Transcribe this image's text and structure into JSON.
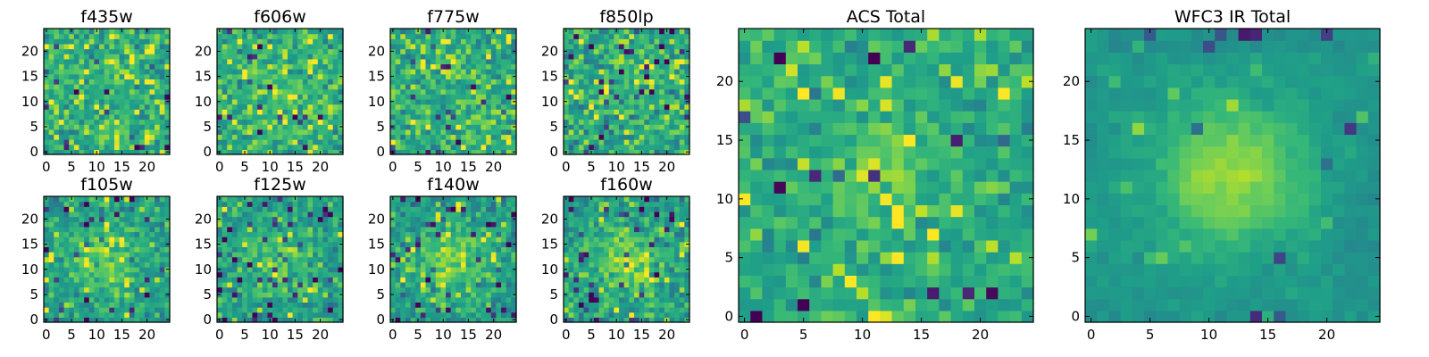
{
  "figure": {
    "colormap": "viridis",
    "colormap_stops": [
      "#440154",
      "#482777",
      "#3e4a89",
      "#31688e",
      "#26828e",
      "#1f9e89",
      "#35b779",
      "#6ece58",
      "#b5de2b",
      "#fde725"
    ]
  },
  "chart_data": [
    {
      "type": "heatmap",
      "title": "f435w",
      "x": {
        "ticks": [
          0,
          5,
          10,
          15,
          20
        ],
        "range": [
          -0.5,
          24.5
        ]
      },
      "y": {
        "ticks": [
          0,
          5,
          10,
          15,
          20
        ],
        "range": [
          -0.5,
          24.5
        ]
      },
      "grid_size": [
        25,
        25
      ],
      "value_range": [
        0,
        1
      ],
      "profile": {
        "background": 0.58,
        "center": [
          12,
          12
        ],
        "peak": 0.07,
        "sigma": 8,
        "noise": 0.2,
        "low_fraction": 0.03,
        "high_fraction": 0.12,
        "seed": 11
      }
    },
    {
      "type": "heatmap",
      "title": "f606w",
      "x": {
        "ticks": [
          0,
          5,
          10,
          15,
          20
        ],
        "range": [
          -0.5,
          24.5
        ]
      },
      "y": {
        "ticks": [
          0,
          5,
          10,
          15,
          20
        ],
        "range": [
          -0.5,
          24.5
        ]
      },
      "grid_size": [
        25,
        25
      ],
      "value_range": [
        0,
        1
      ],
      "profile": {
        "background": 0.6,
        "center": [
          12,
          12
        ],
        "peak": 0.08,
        "sigma": 8,
        "noise": 0.2,
        "low_fraction": 0.03,
        "high_fraction": 0.12,
        "seed": 23
      }
    },
    {
      "type": "heatmap",
      "title": "f775w",
      "x": {
        "ticks": [
          0,
          5,
          10,
          15,
          20
        ],
        "range": [
          -0.5,
          24.5
        ]
      },
      "y": {
        "ticks": [
          0,
          5,
          10,
          15,
          20
        ],
        "range": [
          -0.5,
          24.5
        ]
      },
      "grid_size": [
        25,
        25
      ],
      "value_range": [
        0,
        1
      ],
      "profile": {
        "background": 0.59,
        "center": [
          12,
          12
        ],
        "peak": 0.06,
        "sigma": 8,
        "noise": 0.21,
        "low_fraction": 0.04,
        "high_fraction": 0.12,
        "seed": 37
      }
    },
    {
      "type": "heatmap",
      "title": "f850lp",
      "x": {
        "ticks": [
          0,
          5,
          10,
          15,
          20
        ],
        "range": [
          -0.5,
          24.5
        ]
      },
      "y": {
        "ticks": [
          0,
          5,
          10,
          15,
          20
        ],
        "range": [
          -0.5,
          24.5
        ]
      },
      "grid_size": [
        25,
        25
      ],
      "value_range": [
        0,
        1
      ],
      "profile": {
        "background": 0.58,
        "center": [
          12,
          12
        ],
        "peak": 0.05,
        "sigma": 8,
        "noise": 0.22,
        "low_fraction": 0.05,
        "high_fraction": 0.1,
        "seed": 41
      }
    },
    {
      "type": "heatmap",
      "title": "f105w",
      "x": {
        "ticks": [
          0,
          5,
          10,
          15,
          20
        ],
        "range": [
          -0.5,
          24.5
        ]
      },
      "y": {
        "ticks": [
          0,
          5,
          10,
          15,
          20
        ],
        "range": [
          -0.5,
          24.5
        ]
      },
      "grid_size": [
        25,
        25
      ],
      "value_range": [
        0,
        1
      ],
      "profile": {
        "background": 0.56,
        "center": [
          12,
          12
        ],
        "peak": 0.2,
        "sigma": 5,
        "noise": 0.17,
        "low_fraction": 0.04,
        "high_fraction": 0.08,
        "seed": 53
      }
    },
    {
      "type": "heatmap",
      "title": "f125w",
      "x": {
        "ticks": [
          0,
          5,
          10,
          15,
          20
        ],
        "range": [
          -0.5,
          24.5
        ]
      },
      "y": {
        "ticks": [
          0,
          5,
          10,
          15,
          20
        ],
        "range": [
          -0.5,
          24.5
        ]
      },
      "grid_size": [
        25,
        25
      ],
      "value_range": [
        0,
        1
      ],
      "profile": {
        "background": 0.55,
        "center": [
          12,
          12
        ],
        "peak": 0.2,
        "sigma": 5,
        "noise": 0.18,
        "low_fraction": 0.06,
        "high_fraction": 0.08,
        "seed": 67
      }
    },
    {
      "type": "heatmap",
      "title": "f140w",
      "x": {
        "ticks": [
          0,
          5,
          10,
          15,
          20
        ],
        "range": [
          -0.5,
          24.5
        ]
      },
      "y": {
        "ticks": [
          0,
          5,
          10,
          15,
          20
        ],
        "range": [
          -0.5,
          24.5
        ]
      },
      "grid_size": [
        25,
        25
      ],
      "value_range": [
        0,
        1
      ],
      "profile": {
        "background": 0.55,
        "center": [
          12,
          12
        ],
        "peak": 0.23,
        "sigma": 5,
        "noise": 0.17,
        "low_fraction": 0.05,
        "high_fraction": 0.08,
        "seed": 79
      }
    },
    {
      "type": "heatmap",
      "title": "f160w",
      "x": {
        "ticks": [
          0,
          5,
          10,
          15,
          20
        ],
        "range": [
          -0.5,
          24.5
        ]
      },
      "y": {
        "ticks": [
          0,
          5,
          10,
          15,
          20
        ],
        "range": [
          -0.5,
          24.5
        ]
      },
      "grid_size": [
        25,
        25
      ],
      "value_range": [
        0,
        1
      ],
      "profile": {
        "background": 0.54,
        "center": [
          12,
          12
        ],
        "peak": 0.25,
        "sigma": 5,
        "noise": 0.18,
        "low_fraction": 0.06,
        "high_fraction": 0.08,
        "seed": 97
      }
    },
    {
      "type": "heatmap",
      "title": "ACS Total",
      "x": {
        "ticks": [
          0,
          5,
          10,
          15,
          20
        ],
        "range": [
          -0.5,
          24.5
        ]
      },
      "y": {
        "ticks": [
          0,
          5,
          10,
          15,
          20
        ],
        "range": [
          -0.5,
          24.5
        ]
      },
      "grid_size": [
        25,
        25
      ],
      "value_range": [
        0,
        1
      ],
      "profile": {
        "background": 0.6,
        "center": [
          12,
          13
        ],
        "peak": 0.17,
        "sigma": 3.5,
        "noise": 0.16,
        "low_fraction": 0.04,
        "high_fraction": 0.07,
        "seed": 103
      }
    },
    {
      "type": "heatmap",
      "title": "WFC3 IR Total",
      "x": {
        "ticks": [
          0,
          5,
          10,
          15,
          20
        ],
        "range": [
          -0.5,
          24.5
        ]
      },
      "y": {
        "ticks": [
          0,
          5,
          10,
          15,
          20
        ],
        "range": [
          -0.5,
          24.5
        ]
      },
      "grid_size": [
        25,
        25
      ],
      "value_range": [
        0,
        1
      ],
      "profile": {
        "background": 0.52,
        "center": [
          12,
          12
        ],
        "peak": 0.32,
        "sigma": 4.5,
        "noise": 0.08,
        "low_fraction": 0.015,
        "high_fraction": 0.02,
        "seed": 131
      }
    }
  ]
}
